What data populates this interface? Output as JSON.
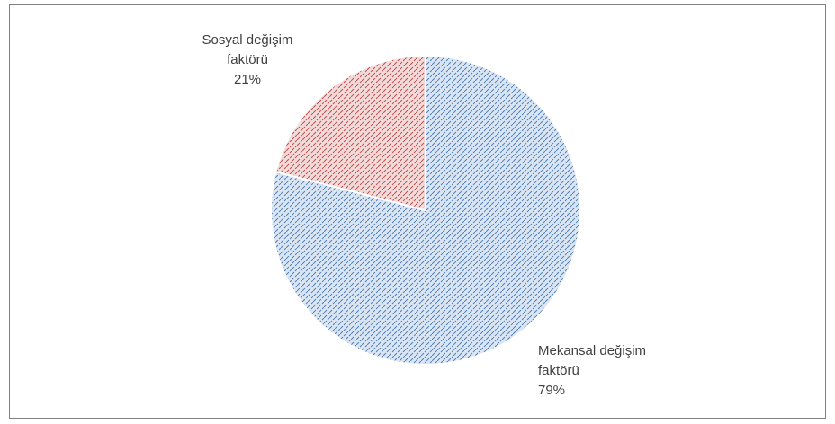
{
  "chart_data": {
    "type": "pie",
    "categories": [
      "Mekansal değişim faktörü",
      "Sosyal değişim faktörü"
    ],
    "values": [
      79,
      21
    ],
    "value_labels": [
      "79%",
      "21%"
    ],
    "colors": [
      "#4f81bd",
      "#c0504d"
    ],
    "fills": [
      "#dce6f2",
      "#f2dcdb"
    ]
  }
}
